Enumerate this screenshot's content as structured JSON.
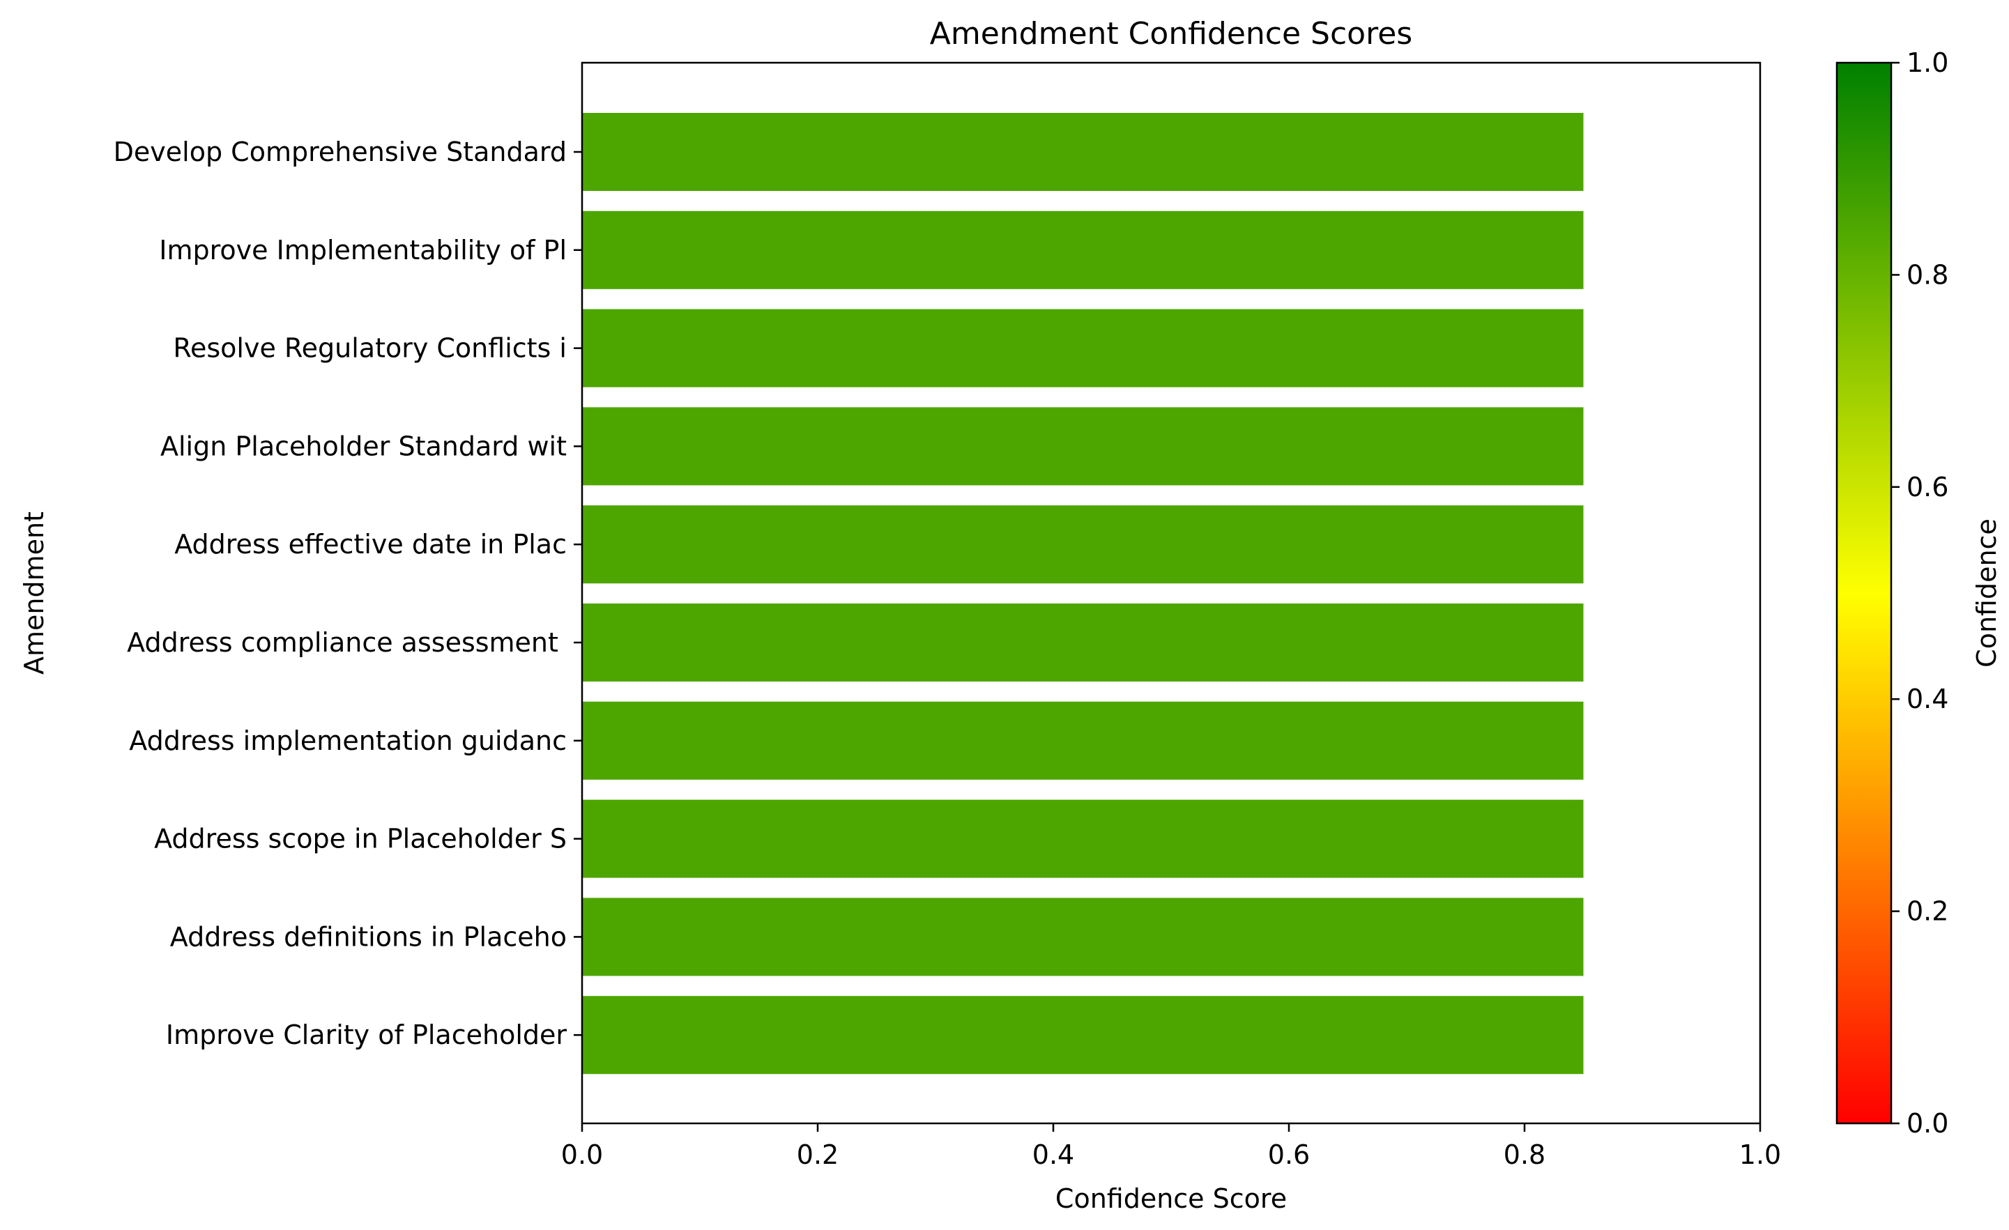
{
  "chart_data": {
    "type": "bar",
    "orientation": "horizontal",
    "title": "Amendment Confidence Scores",
    "xlabel": "Confidence Score",
    "ylabel": "Amendment",
    "xlim": [
      0,
      1
    ],
    "xticks": [
      "0.0",
      "0.2",
      "0.4",
      "0.6",
      "0.8",
      "1.0"
    ],
    "grid": false,
    "categories": [
      "Develop Comprehensive Standard",
      "Improve Implementability of Pl",
      "Resolve Regulatory Conflicts i",
      "Align Placeholder Standard wit",
      "Address effective date in Plac",
      "Address compliance assessment ",
      "Address implementation guidanc",
      "Address scope in Placeholder S",
      "Address definitions in Placeho",
      "Improve Clarity of Placeholder"
    ],
    "values": [
      0.85,
      0.85,
      0.85,
      0.85,
      0.85,
      0.85,
      0.85,
      0.85,
      0.85,
      0.85
    ],
    "bar_color": "#4da600",
    "colorbar": {
      "label": "Confidence",
      "range": [
        0,
        1
      ],
      "ticks": [
        "0.0",
        "0.2",
        "0.4",
        "0.6",
        "0.8",
        "1.0"
      ],
      "colors": [
        "#ff0000",
        "#ffff00",
        "#008000"
      ]
    }
  }
}
